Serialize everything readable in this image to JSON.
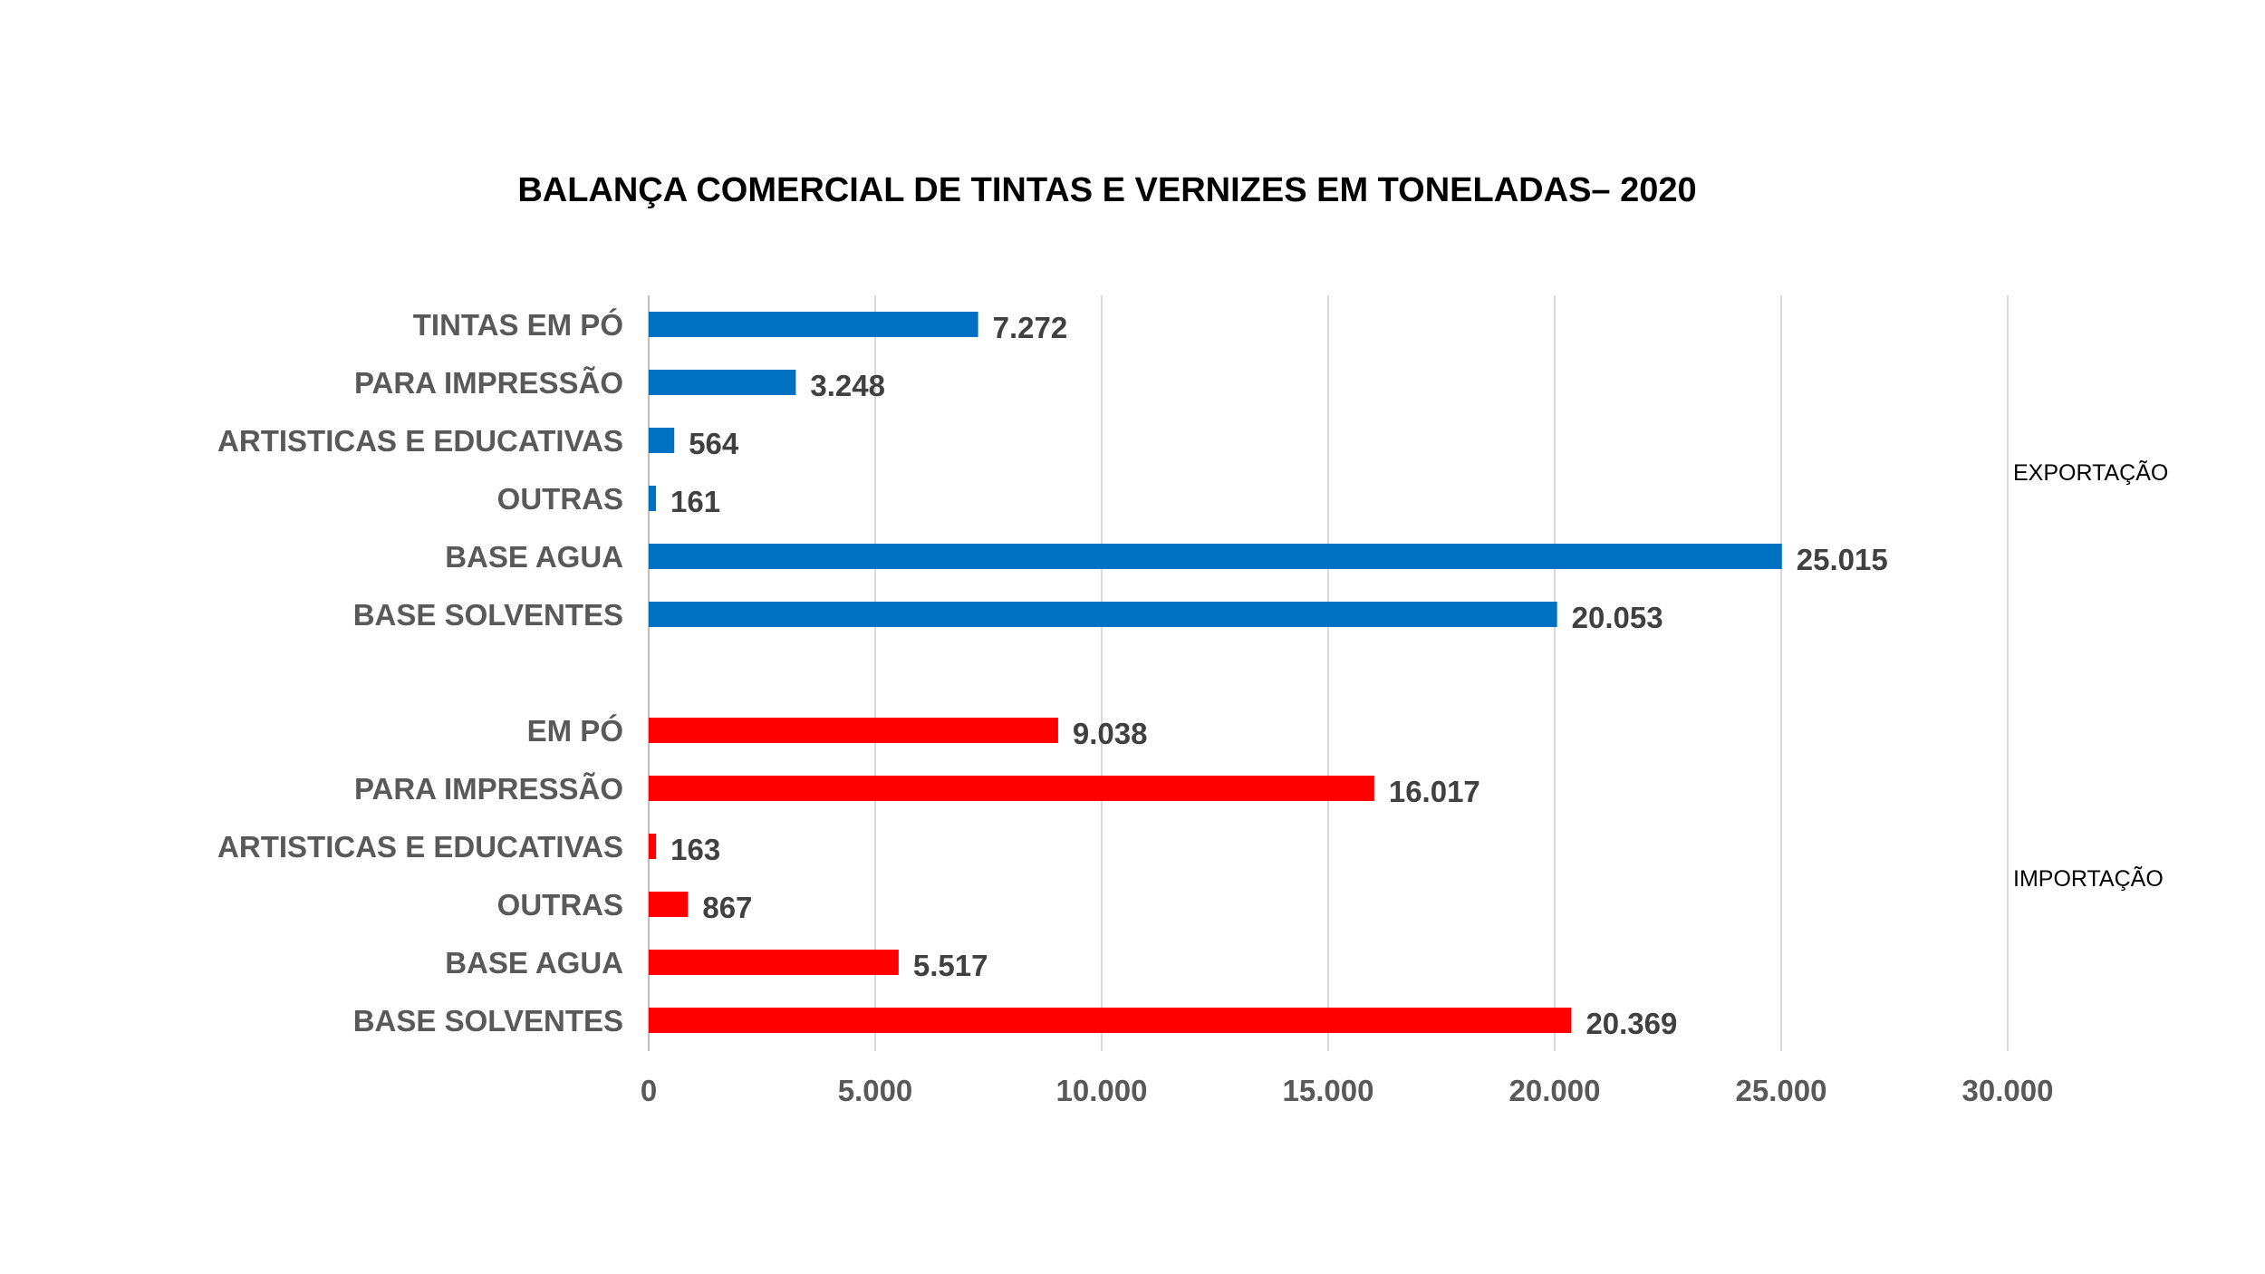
{
  "chart_data": {
    "type": "bar",
    "orientation": "horizontal",
    "title": "BALANÇA COMERCIAL DE TINTAS E VERNIZES EM TONELADAS–  2020",
    "xlim": [
      0,
      30000
    ],
    "x_ticks": [
      "0",
      "5.000",
      "10.000",
      "15.000",
      "20.000",
      "25.000",
      "30.000"
    ],
    "x_tick_values": [
      0,
      5000,
      10000,
      15000,
      20000,
      25000,
      30000
    ],
    "grid": "vertical",
    "groups": [
      {
        "label": "EXPORTAÇÃO",
        "color": "#0070C0",
        "categories": [
          "TINTAS EM PÓ",
          "PARA IMPRESSÃO",
          "ARTISTICAS E EDUCATIVAS",
          "OUTRAS",
          "BASE AGUA",
          "BASE SOLVENTES"
        ],
        "values": [
          7272,
          3248,
          564,
          161,
          25015,
          20053
        ],
        "value_labels": [
          "7.272",
          "3.248",
          "564",
          "161",
          "25.015",
          "20.053"
        ]
      },
      {
        "label": "IMPORTAÇÃO",
        "color": "#FF0000",
        "categories": [
          "EM PÓ",
          "PARA IMPRESSÃO",
          "ARTISTICAS E EDUCATIVAS",
          "OUTRAS",
          "BASE AGUA",
          "BASE SOLVENTES"
        ],
        "values": [
          9038,
          16017,
          163,
          867,
          5517,
          20369
        ],
        "value_labels": [
          "9.038",
          "16.017",
          "163",
          "867",
          "5.517",
          "20.369"
        ]
      }
    ]
  }
}
